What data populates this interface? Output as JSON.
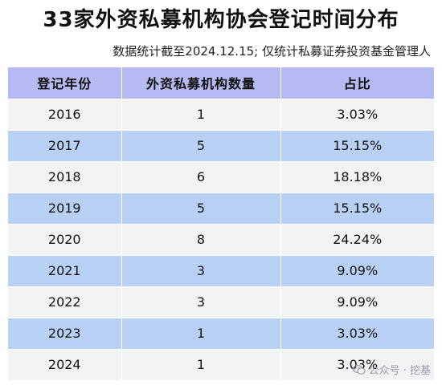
{
  "title": "33家外资私募机构协会登记时间分布",
  "subtitle": "数据统计截至2024.12.15; 仅统计私募证券投资基金管理人",
  "table": {
    "headers": [
      "登记年份",
      "外资私募机构数量",
      "占比"
    ],
    "rows": [
      {
        "year": "2016",
        "count": "1",
        "share": "3.03%"
      },
      {
        "year": "2017",
        "count": "5",
        "share": "15.15%"
      },
      {
        "year": "2018",
        "count": "6",
        "share": "18.18%"
      },
      {
        "year": "2019",
        "count": "5",
        "share": "15.15%"
      },
      {
        "year": "2020",
        "count": "8",
        "share": "24.24%"
      },
      {
        "year": "2021",
        "count": "3",
        "share": "9.09%"
      },
      {
        "year": "2022",
        "count": "3",
        "share": "9.09%"
      },
      {
        "year": "2023",
        "count": "1",
        "share": "3.03%"
      },
      {
        "year": "2024",
        "count": "1",
        "share": "3.03%"
      }
    ]
  },
  "watermark": {
    "text": "公众号 · 挖基",
    "icon": "wechat-icon"
  },
  "colors": {
    "header_bg": "#b6baf2",
    "row_light": "#f3f3f6",
    "row_blue": "#b8d0f4"
  }
}
